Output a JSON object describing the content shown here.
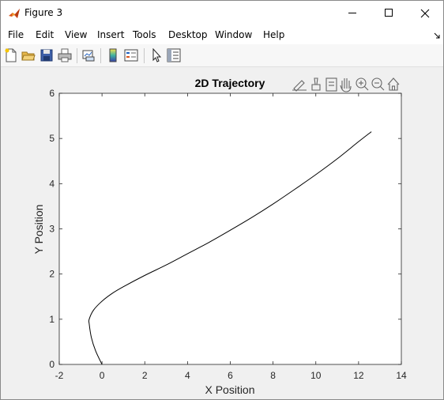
{
  "window": {
    "title": "Figure 3",
    "controls": [
      "minimize",
      "maximize",
      "close"
    ]
  },
  "menubar": {
    "items": [
      "File",
      "Edit",
      "View",
      "Insert",
      "Tools",
      "Desktop",
      "Window",
      "Help"
    ]
  },
  "toolbar": {
    "icons": [
      "new-figure-icon",
      "open-file-icon",
      "save-icon",
      "print-icon",
      "link-plot-icon",
      "colorbar-icon",
      "legend-icon",
      "select-arrow-icon",
      "property-inspector-icon"
    ]
  },
  "axes_toolbar": {
    "icons": [
      "edit-plot-icon",
      "brush-icon",
      "data-tips-icon",
      "pan-icon",
      "zoom-in-icon",
      "zoom-out-icon",
      "home-icon"
    ]
  },
  "chart_data": {
    "type": "line",
    "title": "2D Trajectory",
    "xlabel": "X Position",
    "ylabel": "Y Position",
    "xlim": [
      -2,
      14
    ],
    "ylim": [
      0,
      6
    ],
    "xticks": [
      "-2",
      "0",
      "2",
      "4",
      "6",
      "8",
      "10",
      "12",
      "14"
    ],
    "yticks": [
      "0",
      "1",
      "2",
      "3",
      "4",
      "5",
      "6"
    ],
    "grid": false,
    "series": [
      {
        "color": "#000000",
        "x": [
          0,
          -0.3,
          -0.5,
          -0.6,
          -0.6,
          -0.4,
          0,
          0.5,
          1,
          2,
          3,
          4,
          5,
          6,
          7,
          8,
          9,
          10,
          11,
          12,
          12.6
        ],
        "y": [
          0,
          0.3,
          0.6,
          0.9,
          1.0,
          1.2,
          1.4,
          1.58,
          1.72,
          1.97,
          2.2,
          2.45,
          2.7,
          2.97,
          3.25,
          3.55,
          3.87,
          4.2,
          4.55,
          4.93,
          5.15
        ]
      }
    ]
  }
}
